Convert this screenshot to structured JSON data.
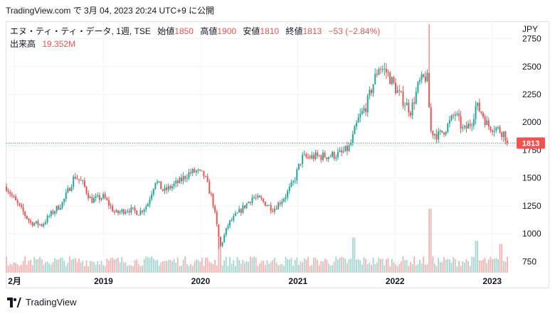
{
  "header": {
    "publish_line": "TradingView.com で 3月 04, 2023 20:24 UTC+9 に公開"
  },
  "legend": {
    "symbol": "エヌ・ティ・ティ・データ, 1週, TSE",
    "open_label": "始値",
    "open": "1850",
    "high_label": "高値",
    "high": "1900",
    "low_label": "安値",
    "low": "1810",
    "close_label": "終値",
    "close": "1813",
    "change": "−53 (−2.84%)",
    "volume_label": "出来高",
    "volume": "19.352M"
  },
  "footer": {
    "brand": "TradingView"
  },
  "colors": {
    "up": "#26a69a",
    "down": "#ef5350",
    "grid": "#f0f3fa",
    "text": "#131722"
  },
  "chart_data": {
    "type": "candlestick",
    "currency": "JPY",
    "last_price": "1813",
    "y_ticks": [
      750,
      1000,
      1250,
      1500,
      1750,
      2000,
      2250,
      2500,
      2750
    ],
    "ylim": [
      650,
      2900
    ],
    "x_ticks": [
      "2月",
      "2019",
      "2020",
      "2021",
      "2022",
      "2023"
    ],
    "x_tick_dates": [
      "2018-02-01",
      "2019-01-01",
      "2020-01-01",
      "2021-01-01",
      "2022-01-01",
      "2023-01-01"
    ],
    "xlim": [
      "2018-01-01",
      "2023-03-15"
    ],
    "price_anchors": [
      [
        "2018-01-01",
        1420
      ],
      [
        "2018-02-01",
        1300
      ],
      [
        "2018-04-01",
        1100
      ],
      [
        "2018-05-15",
        1080
      ],
      [
        "2018-06-15",
        1170
      ],
      [
        "2018-08-01",
        1280
      ],
      [
        "2018-09-15",
        1520
      ],
      [
        "2018-10-15",
        1450
      ],
      [
        "2018-11-15",
        1300
      ],
      [
        "2019-01-01",
        1330
      ],
      [
        "2019-02-15",
        1180
      ],
      [
        "2019-04-01",
        1220
      ],
      [
        "2019-05-15",
        1190
      ],
      [
        "2019-06-15",
        1260
      ],
      [
        "2019-07-15",
        1480
      ],
      [
        "2019-08-15",
        1380
      ],
      [
        "2019-10-15",
        1470
      ],
      [
        "2019-11-15",
        1540
      ],
      [
        "2019-12-15",
        1560
      ],
      [
        "2020-01-15",
        1520
      ],
      [
        "2020-02-15",
        1300
      ],
      [
        "2020-03-15",
        880
      ],
      [
        "2020-04-15",
        1090
      ],
      [
        "2020-06-15",
        1250
      ],
      [
        "2020-07-15",
        1330
      ],
      [
        "2020-08-15",
        1300
      ],
      [
        "2020-10-01",
        1220
      ],
      [
        "2020-11-15",
        1340
      ],
      [
        "2020-12-15",
        1460
      ],
      [
        "2021-01-15",
        1680
      ],
      [
        "2021-03-01",
        1690
      ],
      [
        "2021-05-01",
        1700
      ],
      [
        "2021-06-15",
        1720
      ],
      [
        "2021-07-15",
        1780
      ],
      [
        "2021-08-15",
        2020
      ],
      [
        "2021-09-15",
        2150
      ],
      [
        "2021-10-15",
        2380
      ],
      [
        "2021-11-01",
        2500
      ],
      [
        "2021-12-01",
        2450
      ],
      [
        "2022-01-15",
        2250
      ],
      [
        "2022-02-15",
        2150
      ],
      [
        "2022-03-01",
        2100
      ],
      [
        "2022-04-01",
        2350
      ],
      [
        "2022-05-01",
        2420
      ],
      [
        "2022-05-15",
        1920
      ],
      [
        "2022-06-15",
        1880
      ],
      [
        "2022-07-15",
        1960
      ],
      [
        "2022-08-15",
        2080
      ],
      [
        "2022-09-15",
        1920
      ],
      [
        "2022-10-15",
        2000
      ],
      [
        "2022-11-01",
        2150
      ],
      [
        "2022-11-25",
        2080
      ],
      [
        "2022-12-15",
        1970
      ],
      [
        "2023-01-15",
        1950
      ],
      [
        "2023-02-15",
        1900
      ],
      [
        "2023-03-03",
        1813
      ]
    ],
    "volume_spikes": [
      [
        "2022-05-13",
        1.0
      ],
      [
        "2020-03-13",
        0.55
      ],
      [
        "2021-07-30",
        0.55
      ],
      [
        "2022-11-04",
        0.5
      ],
      [
        "2023-02-03",
        0.45
      ]
    ]
  }
}
